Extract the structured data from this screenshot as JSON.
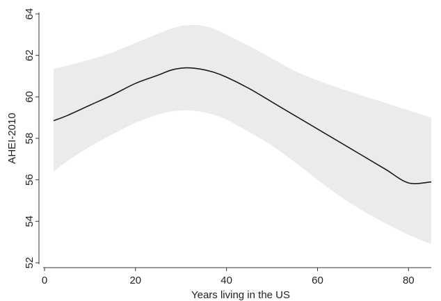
{
  "chart_data": {
    "type": "line",
    "title": "",
    "xlabel": "Years living in the US",
    "ylabel": "AHEI-2010",
    "xlim": [
      0,
      85
    ],
    "ylim": [
      52,
      64
    ],
    "x_ticks": [
      0,
      20,
      40,
      60,
      80
    ],
    "x_tick_labels": [
      "0",
      "20",
      "40",
      "60",
      "80"
    ],
    "y_ticks": [
      52,
      54,
      56,
      58,
      60,
      62,
      64
    ],
    "y_tick_labels": [
      "52",
      "54",
      "56",
      "58",
      "60",
      "62",
      "64"
    ],
    "grid": false,
    "legend": "none",
    "colors": {
      "line": "#1a1a1a",
      "band": "#ebebeb",
      "axis": "#333333"
    },
    "series": [
      {
        "x": [
          2,
          5,
          10,
          15,
          20,
          25,
          28,
          31,
          34,
          37,
          40,
          45,
          50,
          55,
          60,
          65,
          70,
          75,
          80,
          85
        ],
        "values": [
          58.85,
          59.1,
          59.6,
          60.1,
          60.65,
          61.05,
          61.3,
          61.4,
          61.35,
          61.2,
          60.95,
          60.4,
          59.75,
          59.1,
          58.45,
          57.8,
          57.15,
          56.5,
          55.85,
          55.9
        ],
        "lower": [
          56.4,
          56.9,
          57.6,
          58.2,
          58.75,
          59.15,
          59.3,
          59.35,
          59.3,
          59.15,
          58.9,
          58.3,
          57.65,
          56.85,
          56.0,
          55.2,
          54.5,
          53.9,
          53.35,
          52.9
        ],
        "upper": [
          61.35,
          61.5,
          61.8,
          62.15,
          62.6,
          63.05,
          63.3,
          63.45,
          63.45,
          63.3,
          63.0,
          62.45,
          61.85,
          61.25,
          60.8,
          60.4,
          60.05,
          59.7,
          59.35,
          59.0
        ]
      }
    ]
  }
}
